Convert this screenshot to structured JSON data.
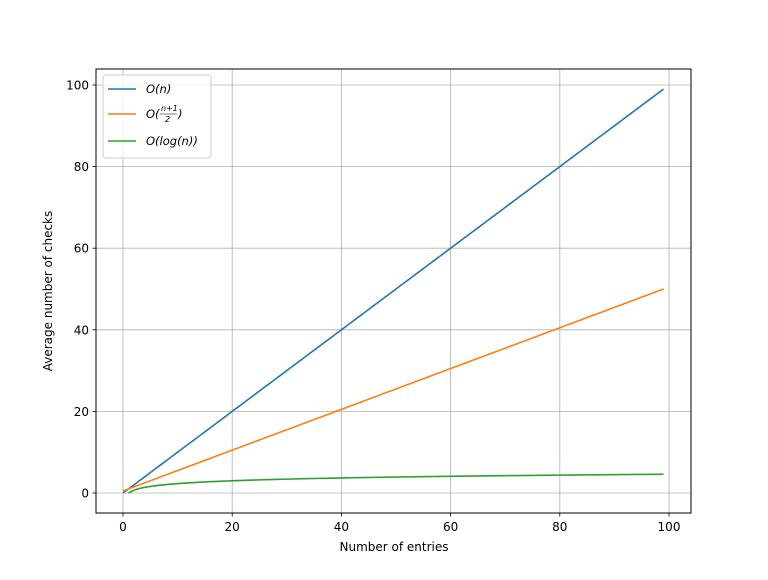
{
  "chart_data": {
    "type": "line",
    "title": "",
    "xlabel": "Number of entries",
    "ylabel": "Average number of checks",
    "xlim": [
      -5,
      104
    ],
    "ylim": [
      -5,
      104
    ],
    "grid": true,
    "legend_position": "upper left",
    "x_ticks": [
      0,
      20,
      40,
      60,
      80,
      100
    ],
    "y_ticks": [
      0,
      20,
      40,
      60,
      80,
      100
    ],
    "x_tick_labels": [
      "0",
      "20",
      "40",
      "60",
      "80",
      "100"
    ],
    "y_tick_labels": [
      "0",
      "20",
      "40",
      "60",
      "80",
      "100"
    ],
    "x_range": {
      "start": 0,
      "end": 99
    },
    "series": [
      {
        "name": "O(n)",
        "legend_label": "O(n)",
        "color": "#1f77b4",
        "formula": "n",
        "x": [
          0,
          10,
          20,
          30,
          40,
          50,
          60,
          70,
          80,
          90,
          99
        ],
        "values": [
          0,
          10,
          20,
          30,
          40,
          50,
          60,
          70,
          80,
          90,
          99
        ]
      },
      {
        "name": "O((n+1)/2)",
        "legend_label": "O((n+1)/2)",
        "color": "#ff7f0e",
        "formula": "(n+1)/2",
        "x": [
          0,
          10,
          20,
          30,
          40,
          50,
          60,
          70,
          80,
          90,
          99
        ],
        "values": [
          0.5,
          5.5,
          10.5,
          15.5,
          20.5,
          25.5,
          30.5,
          35.5,
          40.5,
          45.5,
          50
        ]
      },
      {
        "name": "O(log(n))",
        "legend_label": "O(log(n))",
        "color": "#2ca02c",
        "formula": "ln(n)",
        "x": [
          1,
          2,
          5,
          10,
          20,
          30,
          40,
          50,
          60,
          70,
          80,
          90,
          99
        ],
        "values": [
          0,
          0.69,
          1.61,
          2.3,
          3.0,
          3.4,
          3.69,
          3.91,
          4.09,
          4.25,
          4.38,
          4.5,
          4.6
        ]
      }
    ]
  },
  "legend": {
    "items": [
      {
        "label": "O(n)",
        "color": "#1f77b4"
      },
      {
        "label": "O((n+1)/2)",
        "color": "#ff7f0e"
      },
      {
        "label": "O(log(n))",
        "color": "#2ca02c"
      }
    ]
  },
  "colors": {
    "grid": "#b0b0b0",
    "axes": "#000000",
    "legend_border": "#cccccc"
  }
}
